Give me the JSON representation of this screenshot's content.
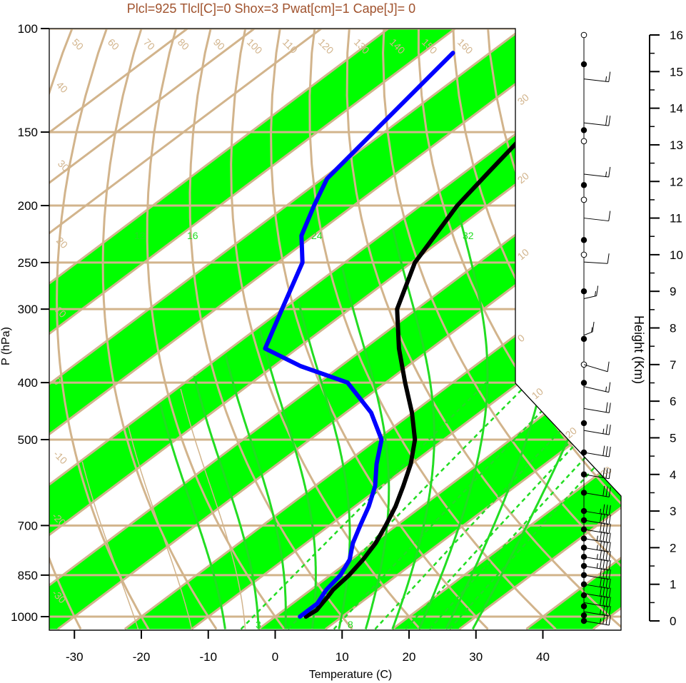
{
  "chart_data": {
    "type": "skew-t",
    "title": "Plcl=925 Tlcl[C]=0 Shox=3 Pwat[cm]=1 Cape[J]= 0",
    "xlabel": "Temperature (C)",
    "ylabel": "P (hPa)",
    "y2label": "Height (Km)",
    "x_ticks": [
      "-30",
      "-20",
      "-10",
      "0",
      "10",
      "20",
      "30",
      "40"
    ],
    "p_ticks": [
      "100",
      "150",
      "200",
      "250",
      "300",
      "400",
      "500",
      "700",
      "850",
      "1000"
    ],
    "height_ticks": [
      "0",
      "1",
      "2",
      "3",
      "4",
      "5",
      "6",
      "7",
      "8",
      "9",
      "10",
      "11",
      "12",
      "13",
      "14",
      "15",
      "16"
    ],
    "xlim": [
      -34,
      52
    ],
    "plim": [
      1050,
      100
    ],
    "isotherm_labels": [
      "-30",
      "-20",
      "-10",
      "0",
      "10",
      "20",
      "30"
    ],
    "isotherm_labels_right": [
      "0",
      "10",
      "20",
      "30"
    ],
    "theta_labels": [
      "20",
      "30",
      "40",
      "50",
      "60",
      "70",
      "80",
      "90",
      "100",
      "110",
      "120",
      "130",
      "140",
      "150",
      "160"
    ],
    "mixing_ratio_labels": [
      "3",
      "8",
      "12",
      "16",
      "24",
      "32"
    ],
    "series": [
      {
        "name": "Temperature",
        "color": "#000000",
        "points": [
          {
            "p": 1000,
            "t": 4.6
          },
          {
            "p": 975,
            "t": 4.9
          },
          {
            "p": 950,
            "t": 4.4
          },
          {
            "p": 925,
            "t": 3.9
          },
          {
            "p": 900,
            "t": 3.3
          },
          {
            "p": 850,
            "t": 2.8
          },
          {
            "p": 800,
            "t": 1.8
          },
          {
            "p": 750,
            "t": 0.4
          },
          {
            "p": 700,
            "t": -1.6
          },
          {
            "p": 650,
            "t": -3.9
          },
          {
            "p": 600,
            "t": -6.8
          },
          {
            "p": 550,
            "t": -10.1
          },
          {
            "p": 500,
            "t": -14.3
          },
          {
            "p": 450,
            "t": -20.1
          },
          {
            "p": 400,
            "t": -27.1
          },
          {
            "p": 350,
            "t": -34.8
          },
          {
            "p": 300,
            "t": -42.9
          },
          {
            "p": 250,
            "t": -49.5
          },
          {
            "p": 200,
            "t": -54.5
          },
          {
            "p": 175,
            "t": -56.5
          },
          {
            "p": 150,
            "t": -58.7
          },
          {
            "p": 125,
            "t": -60.9
          },
          {
            "p": 110,
            "t": -61.8
          }
        ]
      },
      {
        "name": "Dew point",
        "color": "#0000ff",
        "points": [
          {
            "p": 1000,
            "t": 3.7
          },
          {
            "p": 975,
            "t": 3.7
          },
          {
            "p": 950,
            "t": 3.7
          },
          {
            "p": 925,
            "t": 3.0
          },
          {
            "p": 900,
            "t": 2.3
          },
          {
            "p": 850,
            "t": 1.5
          },
          {
            "p": 800,
            "t": -0.2
          },
          {
            "p": 750,
            "t": -3.0
          },
          {
            "p": 700,
            "t": -5.4
          },
          {
            "p": 650,
            "t": -7.9
          },
          {
            "p": 600,
            "t": -11.0
          },
          {
            "p": 550,
            "t": -15.2
          },
          {
            "p": 500,
            "t": -19.3
          },
          {
            "p": 450,
            "t": -26.2
          },
          {
            "p": 400,
            "t": -35.7
          },
          {
            "p": 375,
            "t": -46.0
          },
          {
            "p": 350,
            "t": -54.8
          },
          {
            "p": 300,
            "t": -60.1
          },
          {
            "p": 250,
            "t": -66.3
          },
          {
            "p": 225,
            "t": -71.8
          },
          {
            "p": 200,
            "t": -75.9
          },
          {
            "p": 180,
            "t": -79.3
          },
          {
            "p": 110,
            "t": -85.5
          }
        ]
      }
    ],
    "wind_profile": [
      {
        "z": 0.0,
        "dir": 270,
        "kt": 35
      },
      {
        "z": 0.25,
        "dir": 270,
        "kt": 35
      },
      {
        "z": 0.5,
        "dir": 270,
        "kt": 40
      },
      {
        "z": 0.75,
        "dir": 270,
        "kt": 40
      },
      {
        "z": 1.0,
        "dir": 270,
        "kt": 40
      },
      {
        "z": 1.25,
        "dir": 270,
        "kt": 40
      },
      {
        "z": 1.5,
        "dir": 270,
        "kt": 45
      },
      {
        "z": 1.75,
        "dir": 270,
        "kt": 45
      },
      {
        "z": 2.0,
        "dir": 270,
        "kt": 45
      },
      {
        "z": 2.25,
        "dir": 270,
        "kt": 45
      },
      {
        "z": 2.5,
        "dir": 270,
        "kt": 40
      },
      {
        "z": 2.75,
        "dir": 270,
        "kt": 40
      },
      {
        "z": 3.0,
        "dir": 270,
        "kt": 35
      },
      {
        "z": 3.5,
        "dir": 270,
        "kt": 30
      },
      {
        "z": 4.0,
        "dir": 270,
        "kt": 30
      },
      {
        "z": 4.6,
        "dir": 270,
        "kt": 30
      },
      {
        "z": 5.2,
        "dir": 270,
        "kt": 25
      },
      {
        "z": 5.8,
        "dir": 270,
        "kt": 20
      },
      {
        "z": 6.4,
        "dir": 280,
        "kt": 15
      },
      {
        "z": 7.0,
        "dir": 290,
        "kt": 10
      },
      {
        "z": 7.8,
        "dir": 200,
        "kt": 15
      },
      {
        "z": 8.8,
        "dir": 210,
        "kt": 15
      },
      {
        "z": 9.8,
        "dir": 250,
        "kt": 10
      },
      {
        "z": 11.0,
        "dir": 260,
        "kt": 10
      },
      {
        "z": 12.2,
        "dir": 260,
        "kt": 15
      },
      {
        "z": 13.6,
        "dir": 260,
        "kt": 20
      },
      {
        "z": 14.8,
        "dir": 260,
        "kt": 15
      }
    ],
    "filled_markers_km": [
      0.0,
      0.15,
      0.4,
      0.7,
      1.0,
      1.25,
      1.5,
      1.75,
      2.0,
      2.25,
      2.5,
      2.75,
      3.0,
      3.5,
      4.0,
      4.6,
      5.4,
      6.5,
      7.7,
      9.0,
      10.4,
      11.9,
      13.4,
      15.2
    ],
    "open_markers_km": [
      7.0,
      10.0,
      11.5,
      13.1,
      16.0
    ]
  }
}
